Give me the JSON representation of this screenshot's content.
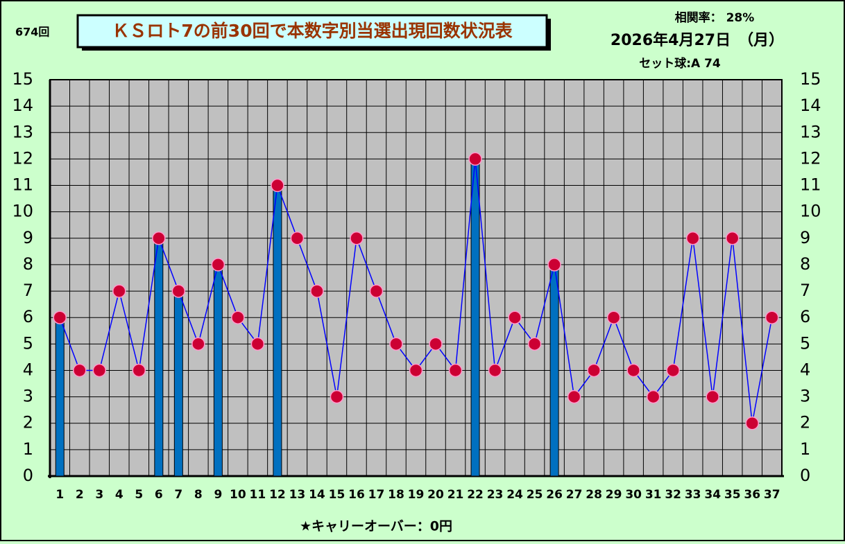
{
  "chart_data": {
    "type": "bar-line",
    "draw_label": "674回",
    "title": "ＫＳロト7の前30回で本数字別当選出現回数状況表",
    "correlation": "相関率：  28%",
    "date": "2026年4月27日　（月）",
    "set_ball": "セット球:A 74",
    "footer": "★キャリーオーバー：0円",
    "categories": [
      "1",
      "2",
      "3",
      "4",
      "5",
      "6",
      "7",
      "8",
      "9",
      "10",
      "11",
      "12",
      "13",
      "14",
      "15",
      "16",
      "17",
      "18",
      "19",
      "20",
      "21",
      "22",
      "23",
      "24",
      "25",
      "26",
      "27",
      "28",
      "29",
      "30",
      "31",
      "32",
      "33",
      "34",
      "35",
      "36",
      "37"
    ],
    "series": [
      {
        "type": "bar",
        "color": "#0070c0",
        "values": [
          6,
          null,
          null,
          null,
          null,
          9,
          7,
          null,
          8,
          null,
          null,
          11,
          null,
          null,
          null,
          null,
          null,
          null,
          null,
          null,
          null,
          12,
          null,
          null,
          null,
          8,
          null,
          null,
          null,
          null,
          null,
          null,
          null,
          null,
          null,
          null,
          null
        ]
      },
      {
        "type": "line",
        "color": "#0000ff",
        "marker_color": "#cc0033",
        "values": [
          6,
          4,
          4,
          7,
          4,
          9,
          7,
          5,
          8,
          6,
          5,
          11,
          9,
          7,
          3,
          9,
          7,
          5,
          4,
          5,
          4,
          12,
          4,
          6,
          5,
          8,
          3,
          4,
          6,
          4,
          3,
          4,
          9,
          3,
          9,
          2,
          6
        ]
      }
    ],
    "ylim": [
      0,
      15
    ],
    "yticks": [
      0,
      1,
      2,
      3,
      4,
      5,
      6,
      7,
      8,
      9,
      10,
      11,
      12,
      13,
      14,
      15
    ],
    "grid": true
  }
}
